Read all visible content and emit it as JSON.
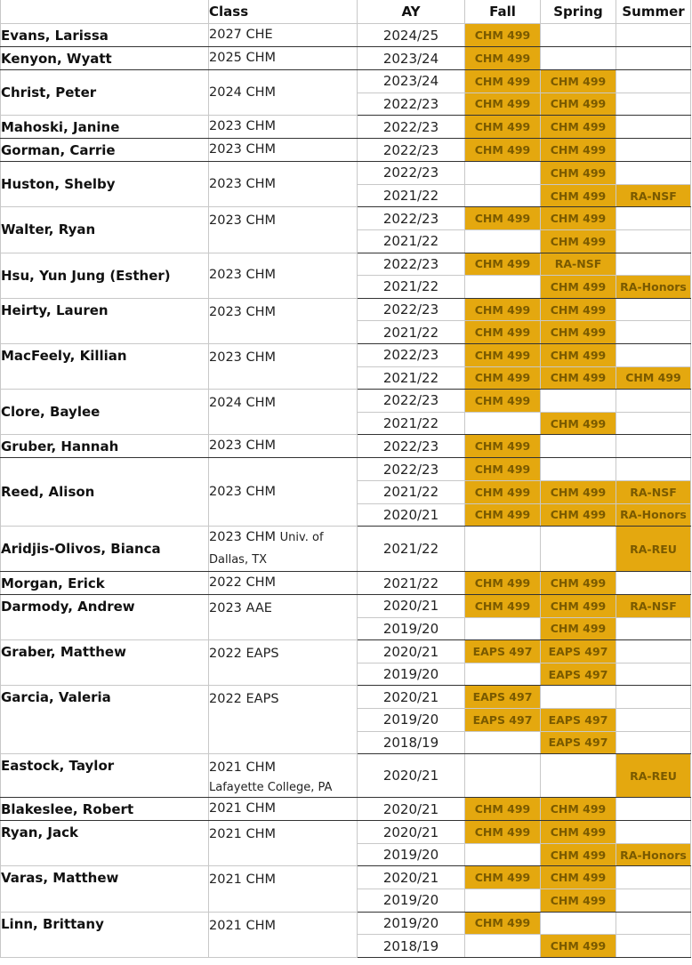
{
  "header": {
    "name": "",
    "class": "Class",
    "ay": "AY",
    "fall": "Fall",
    "spring": "Spring",
    "summer": "Summer"
  },
  "students": [
    {
      "name": "Evans, Larissa",
      "class": "2027 CHE",
      "rows": [
        {
          "ay": "2024/25",
          "fall": "CHM 499",
          "spring": "",
          "summer": ""
        }
      ]
    },
    {
      "name": "Kenyon, Wyatt",
      "class": "2025 CHM",
      "rows": [
        {
          "ay": "2023/24",
          "fall": "CHM 499",
          "spring": "",
          "summer": ""
        }
      ]
    },
    {
      "name": "Christ, Peter",
      "class": "2024 CHM",
      "rows": [
        {
          "ay": "2023/24",
          "fall": "CHM 499",
          "spring": "CHM 499",
          "summer": ""
        },
        {
          "ay": "2022/23",
          "fall": "CHM 499",
          "spring": "CHM 499",
          "summer": ""
        }
      ]
    },
    {
      "name": "Mahoski, Janine",
      "class": "2023 CHM",
      "rows": [
        {
          "ay": "2022/23",
          "fall": "CHM 499",
          "spring": "CHM 499",
          "summer": ""
        }
      ]
    },
    {
      "name": "Gorman, Carrie",
      "class": "2023 CHM",
      "rows": [
        {
          "ay": "2022/23",
          "fall": "CHM 499",
          "spring": "CHM 499",
          "summer": ""
        }
      ]
    },
    {
      "name": "Huston, Shelby",
      "class": "2023 CHM",
      "rows": [
        {
          "ay": "2022/23",
          "fall": "",
          "spring": "CHM 499",
          "summer": ""
        },
        {
          "ay": "2021/22",
          "fall": "",
          "spring": "CHM 499",
          "summer": "RA-NSF"
        }
      ]
    },
    {
      "name": "Walter, Ryan",
      "class": "2023 CHM",
      "classTop": true,
      "rows": [
        {
          "ay": "2022/23",
          "fall": "CHM 499",
          "spring": "CHM 499",
          "summer": ""
        },
        {
          "ay": "2021/22",
          "fall": "",
          "spring": "CHM 499",
          "summer": ""
        }
      ]
    },
    {
      "name": "Hsu, Yun Jung (Esther)",
      "class": "2023 CHM",
      "rows": [
        {
          "ay": "2022/23",
          "fall": "CHM 499",
          "spring": "RA-NSF",
          "summer": ""
        },
        {
          "ay": "2021/22",
          "fall": "",
          "spring": "CHM 499",
          "summer": "RA-Honors"
        }
      ]
    },
    {
      "name": "Heirty, Lauren",
      "nameTop": true,
      "class": "2023 CHM",
      "classTop": true,
      "rows": [
        {
          "ay": "2022/23",
          "fall": "CHM 499",
          "spring": "CHM 499",
          "summer": ""
        },
        {
          "ay": "2021/22",
          "fall": "CHM 499",
          "spring": "CHM 499",
          "summer": ""
        }
      ]
    },
    {
      "name": "MacFeely, Killian",
      "nameTop": true,
      "class": "2023 CHM",
      "classTop": true,
      "rows": [
        {
          "ay": "2022/23",
          "fall": "CHM 499",
          "spring": "CHM 499",
          "summer": ""
        },
        {
          "ay": "2021/22",
          "fall": "CHM 499",
          "spring": "CHM 499",
          "summer": "CHM 499"
        }
      ]
    },
    {
      "name": "Clore, Baylee",
      "class": "2024 CHM",
      "classTop": true,
      "rows": [
        {
          "ay": "2022/23",
          "fall": "CHM 499",
          "spring": "",
          "summer": ""
        },
        {
          "ay": "2021/22",
          "fall": "",
          "spring": "CHM 499",
          "summer": ""
        }
      ]
    },
    {
      "name": "Gruber, Hannah",
      "class": "2023 CHM",
      "rows": [
        {
          "ay": "2022/23",
          "fall": "CHM 499",
          "spring": "",
          "summer": ""
        }
      ]
    },
    {
      "name": "Reed, Alison",
      "class": "2023 CHM",
      "rows": [
        {
          "ay": "2022/23",
          "fall": "CHM 499",
          "spring": "",
          "summer": ""
        },
        {
          "ay": "2021/22",
          "fall": "CHM 499",
          "spring": "CHM 499",
          "summer": "RA-NSF"
        },
        {
          "ay": "2020/21",
          "fall": "CHM 499",
          "spring": "CHM 499",
          "summer": "RA-Honors"
        }
      ]
    },
    {
      "name": "Aridjis-Olivos, Bianca",
      "class": "2023 CHM",
      "classSmall": "Univ. of Dallas, TX",
      "rows": [
        {
          "ay": "2021/22",
          "fall": "",
          "spring": "",
          "summer": "RA-REU"
        }
      ]
    },
    {
      "name": "Morgan, Erick",
      "class": "2022 CHM",
      "rows": [
        {
          "ay": "2021/22",
          "fall": "CHM 499",
          "spring": "CHM 499",
          "summer": ""
        }
      ]
    },
    {
      "name": "Darmody, Andrew",
      "nameTop": true,
      "class": "2023 AAE",
      "classTop": true,
      "rows": [
        {
          "ay": "2020/21",
          "fall": "CHM 499",
          "spring": "CHM 499",
          "summer": "RA-NSF"
        },
        {
          "ay": "2019/20",
          "fall": "",
          "spring": "CHM 499",
          "summer": ""
        }
      ]
    },
    {
      "name": "Graber, Matthew",
      "nameTop": true,
      "class": "2022 EAPS",
      "classTop": true,
      "rows": [
        {
          "ay": "2020/21",
          "fall": "EAPS 497",
          "spring": "EAPS 497",
          "summer": ""
        },
        {
          "ay": "2019/20",
          "fall": "",
          "spring": "EAPS 497",
          "summer": ""
        }
      ]
    },
    {
      "name": "Garcia, Valeria",
      "nameTop": true,
      "class": "2022 EAPS",
      "classTop": true,
      "rows": [
        {
          "ay": "2020/21",
          "fall": "EAPS 497",
          "spring": "",
          "summer": ""
        },
        {
          "ay": "2019/20",
          "fall": "EAPS 497",
          "spring": "EAPS 497",
          "summer": ""
        },
        {
          "ay": "2018/19",
          "fall": "",
          "spring": "EAPS 497",
          "summer": ""
        }
      ]
    },
    {
      "name": "Eastock, Taylor",
      "nameTop": true,
      "class": "2021 CHM",
      "classSmall": "Lafayette College, PA",
      "classTop": true,
      "rows": [
        {
          "ay": "2020/21",
          "fall": "",
          "spring": "",
          "summer": "RA-REU"
        }
      ]
    },
    {
      "name": "Blakeslee, Robert",
      "class": "2021 CHM",
      "rows": [
        {
          "ay": "2020/21",
          "fall": "CHM 499",
          "spring": "CHM 499",
          "summer": ""
        }
      ]
    },
    {
      "name": "Ryan, Jack",
      "nameTop": true,
      "class": "2021 CHM",
      "classTop": true,
      "rows": [
        {
          "ay": "2020/21",
          "fall": "CHM 499",
          "spring": "CHM 499",
          "summer": ""
        },
        {
          "ay": "2019/20",
          "fall": "",
          "spring": "CHM 499",
          "summer": "RA-Honors"
        }
      ]
    },
    {
      "name": "Varas, Matthew",
      "nameTop": true,
      "class": "2021 CHM",
      "classTop": true,
      "rows": [
        {
          "ay": "2020/21",
          "fall": "CHM 499",
          "spring": "CHM 499",
          "summer": ""
        },
        {
          "ay": "2019/20",
          "fall": "",
          "spring": "CHM 499",
          "summer": ""
        }
      ]
    },
    {
      "name": "Linn, Brittany",
      "nameTop": true,
      "class": "2021 CHM",
      "classTop": true,
      "rows": [
        {
          "ay": "2019/20",
          "fall": "CHM 499",
          "spring": "",
          "summer": ""
        },
        {
          "ay": "2018/19",
          "fall": "",
          "spring": "CHM 499",
          "summer": ""
        }
      ]
    }
  ],
  "colors": {
    "filled": "#e4a80f",
    "term_text": "#7a5a00",
    "grid": "#c8c8c8"
  }
}
